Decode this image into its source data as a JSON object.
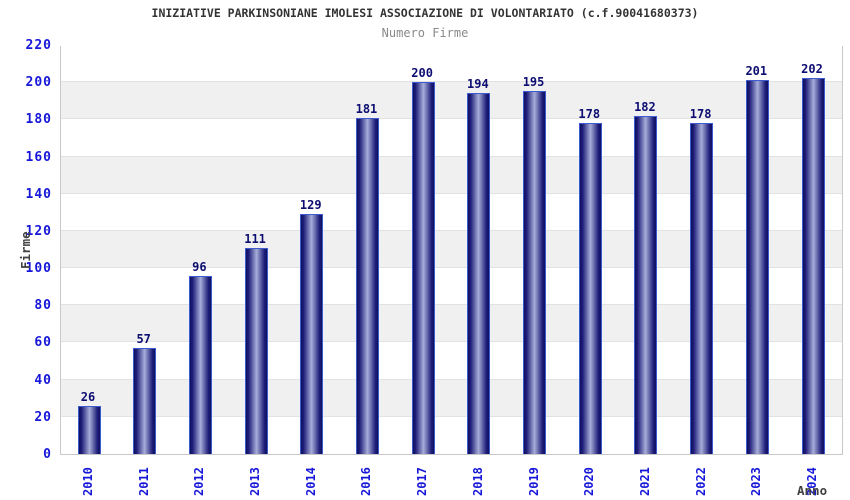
{
  "chart_data": {
    "type": "bar",
    "title": "INIZIATIVE PARKINSONIANE IMOLESI ASSOCIAZIONE DI VOLONTARIATO (c.f.90041680373)",
    "subtitle": "Numero Firme",
    "xlabel": "Anno",
    "ylabel": "Firme",
    "categories": [
      "2010",
      "2011",
      "2012",
      "2013",
      "2014",
      "2016",
      "2017",
      "2018",
      "2019",
      "2020",
      "2021",
      "2022",
      "2023",
      "2024"
    ],
    "values": [
      26,
      57,
      96,
      111,
      129,
      181,
      200,
      194,
      195,
      178,
      182,
      178,
      201,
      202
    ],
    "ylim": [
      0,
      220
    ],
    "ytick_step": 20,
    "grid": "horizontal-bands-alternating",
    "legend": "none",
    "bar_value_labels": true,
    "colors": {
      "tick_label": "#1717d9",
      "value_label": "#0d0d72",
      "bar_edge_dark": "#101060",
      "bar_inner_dark": "#1d1d78",
      "bar_highlight": "#a6aed9",
      "bar_border": "#3c5bd0",
      "band_gray": "#f0f0f0",
      "band_white": "#ffffff",
      "gridline": "#e2e2e2",
      "plot_border": "#c9c9c9",
      "title": "#333333",
      "subtitle": "#8a8a8a",
      "axis_label": "#404040"
    }
  }
}
